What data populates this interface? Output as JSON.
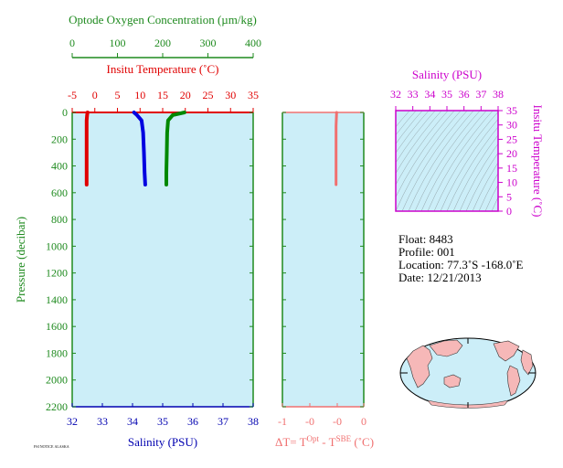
{
  "chart_data": [
    {
      "type": "line",
      "y_axis": {
        "label": "Pressure (decibar)",
        "ticks": [
          "0",
          "200",
          "400",
          "600",
          "800",
          "1000",
          "1200",
          "1400",
          "1600",
          "1800",
          "2000",
          "2200"
        ],
        "range": [
          0,
          2200
        ],
        "inverted": true
      },
      "x_axes": {
        "oxygen": {
          "label": "Optode Oxygen Concentration (µm/kg)",
          "ticks": [
            "0",
            "100",
            "200",
            "300",
            "400"
          ],
          "range": [
            0,
            400
          ]
        },
        "temperature": {
          "label": "Insitu Temperature (˚C)",
          "ticks": [
            "-5",
            "0",
            "5",
            "10",
            "15",
            "20",
            "25",
            "30",
            "35"
          ],
          "range": [
            -5,
            35
          ]
        },
        "salinity": {
          "label": "Salinity (PSU)",
          "ticks": [
            "32",
            "33",
            "34",
            "35",
            "36",
            "37",
            "38"
          ],
          "range": [
            32,
            38
          ]
        }
      },
      "series": [
        {
          "name": "Insitu Temperature",
          "axis": "temperature",
          "color": "#e00000",
          "x": [
            -1.6,
            -1.7,
            -1.8,
            -1.8,
            -1.8,
            -1.8,
            -1.8
          ],
          "y": [
            0,
            20,
            60,
            150,
            300,
            450,
            540
          ]
        },
        {
          "name": "Salinity",
          "axis": "salinity",
          "color": "#0000e0",
          "x": [
            34.05,
            34.15,
            34.3,
            34.35,
            34.38,
            34.4,
            34.42
          ],
          "y": [
            0,
            20,
            60,
            150,
            300,
            450,
            540
          ]
        },
        {
          "name": "Optode Oxygen Concentration",
          "axis": "oxygen",
          "color": "#008800",
          "x": [
            248,
            222,
            212,
            210,
            209,
            208,
            208
          ],
          "y": [
            0,
            20,
            60,
            150,
            300,
            450,
            540
          ]
        }
      ],
      "colors": {
        "background": "#cceef8"
      }
    },
    {
      "type": "line",
      "x_axis": {
        "label_prefix": "ΔT= T",
        "label_sup1": "Opt",
        "label_mid": " - T",
        "label_sup2": "SBE",
        "label_suffix": " (˚C)",
        "ticks": [
          "-1",
          "-0",
          "-0",
          "0"
        ],
        "range": [
          -1,
          0.5
        ]
      },
      "series": [
        {
          "color": "#f07070",
          "x": [
            0.0,
            -0.01,
            -0.01,
            -0.01,
            -0.01
          ],
          "y": [
            0,
            100,
            250,
            400,
            540
          ]
        }
      ]
    },
    {
      "type": "line",
      "top_axis": {
        "label": "Salinity (PSU)",
        "ticks": [
          "32",
          "33",
          "34",
          "35",
          "36",
          "37",
          "38"
        ],
        "range": [
          32,
          38
        ]
      },
      "right_axis": {
        "label": "Insitu Temperature (˚C)",
        "ticks": [
          "0",
          "5",
          "10",
          "15",
          "20",
          "25",
          "30",
          "35"
        ],
        "range": [
          0,
          35
        ]
      }
    }
  ],
  "info": {
    "float": "Float:  8483",
    "profile": "Profile:  001",
    "location": "Location:  77.3˚S  -168.0˚E",
    "date": "Date:  12/21/2013"
  },
  "footnote": "FSI NOTICE ALASKA"
}
